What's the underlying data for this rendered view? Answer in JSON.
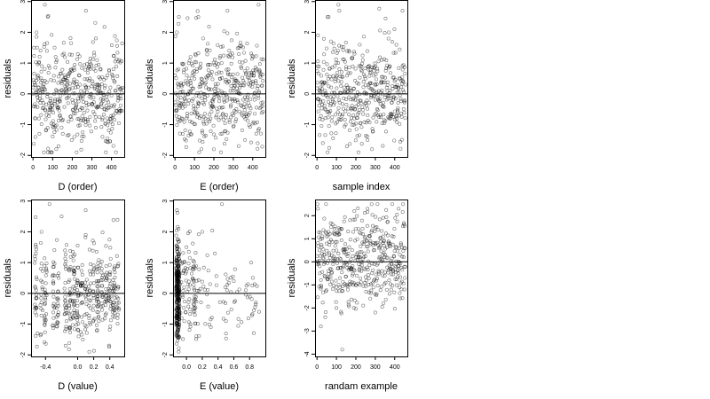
{
  "chart_data": [
    {
      "type": "scatter",
      "xlabel": "D (order)",
      "ylabel": "residuals",
      "xlim": [
        -10,
        465
      ],
      "ylim": [
        -2.05,
        3.05
      ],
      "xticks": [
        0,
        100,
        200,
        300,
        400
      ],
      "xtick_labels": [
        "0",
        "100",
        "200",
        "300",
        "400"
      ],
      "yticks": [
        -2,
        -1,
        0,
        1,
        2,
        3
      ],
      "ytick_labels": [
        "-2",
        "-1",
        "0",
        "1",
        "2",
        "3"
      ],
      "hline": 0,
      "n_points": 450,
      "points": [
        [
          5,
          1.5
        ],
        [
          12,
          -1.4
        ],
        [
          18,
          2.0
        ],
        [
          25,
          0.6
        ],
        [
          30,
          -0.8
        ],
        [
          45,
          0.9
        ],
        [
          60,
          2.9
        ],
        [
          75,
          2.5
        ],
        [
          90,
          -0.5
        ],
        [
          110,
          1.5
        ],
        [
          130,
          -1.7
        ],
        [
          150,
          0.4
        ],
        [
          180,
          -0.9
        ],
        [
          210,
          -1.4
        ],
        [
          240,
          0.3
        ],
        [
          270,
          2.7
        ],
        [
          290,
          0.5
        ],
        [
          320,
          -1.1
        ],
        [
          350,
          -0.3
        ],
        [
          380,
          0.6
        ],
        [
          410,
          0.8
        ],
        [
          440,
          1.1
        ],
        [
          455,
          0.2
        ]
      ],
      "grid": false
    },
    {
      "type": "scatter",
      "xlabel": "E (order)",
      "ylabel": "residuals",
      "xlim": [
        -10,
        465
      ],
      "ylim": [
        -2.05,
        3.05
      ],
      "xticks": [
        0,
        100,
        200,
        300,
        400
      ],
      "xtick_labels": [
        "0",
        "100",
        "200",
        "300",
        "400"
      ],
      "yticks": [
        -2,
        -1,
        0,
        1,
        2,
        3
      ],
      "ytick_labels": [
        "-2",
        "-1",
        "0",
        "1",
        "2",
        "3"
      ],
      "hline": 0,
      "n_points": 450,
      "points": [
        [
          10,
          2.0
        ],
        [
          20,
          2.5
        ],
        [
          40,
          -1.3
        ],
        [
          80,
          1.2
        ],
        [
          120,
          2.5
        ],
        [
          140,
          -1.2
        ],
        [
          170,
          0.6
        ],
        [
          200,
          -1.8
        ],
        [
          240,
          1.0
        ],
        [
          270,
          2.7
        ],
        [
          300,
          -0.7
        ],
        [
          330,
          1.5
        ],
        [
          360,
          -1.5
        ],
        [
          400,
          0.4
        ],
        [
          430,
          2.9
        ],
        [
          450,
          -0.4
        ]
      ],
      "grid": false
    },
    {
      "type": "scatter",
      "xlabel": "sample index",
      "ylabel": "residuals",
      "xlim": [
        -10,
        465
      ],
      "ylim": [
        -2.05,
        3.05
      ],
      "xticks": [
        0,
        100,
        200,
        300,
        400
      ],
      "xtick_labels": [
        "0",
        "100",
        "200",
        "300",
        "400"
      ],
      "yticks": [
        -2,
        -1,
        0,
        1,
        2,
        3
      ],
      "ytick_labels": [
        "-2",
        "-1",
        "0",
        "1",
        "2",
        "3"
      ],
      "hline": 0,
      "n_points": 450,
      "points": [
        [
          5,
          1.9
        ],
        [
          30,
          -1.6
        ],
        [
          60,
          2.5
        ],
        [
          110,
          2.9
        ],
        [
          115,
          2.7
        ],
        [
          150,
          0.8
        ],
        [
          190,
          -1.0
        ],
        [
          220,
          1.6
        ],
        [
          260,
          -1.5
        ],
        [
          300,
          0.9
        ],
        [
          340,
          -0.4
        ],
        [
          370,
          2.0
        ],
        [
          410,
          -0.7
        ],
        [
          440,
          2.7
        ],
        [
          455,
          0.3
        ]
      ],
      "grid": false
    },
    {
      "type": "scatter",
      "xlabel": "D (value)",
      "ylabel": "residuals",
      "xlim": [
        -0.58,
        0.58
      ],
      "ylim": [
        -2.05,
        3.05
      ],
      "xticks": [
        -0.4,
        0.0,
        0.2,
        0.4
      ],
      "xtick_labels": [
        "-0.4",
        "0.0",
        "0.2",
        "0.4"
      ],
      "yticks": [
        -2,
        -1,
        0,
        1,
        2,
        3
      ],
      "ytick_labels": [
        "-2",
        "-1",
        "0",
        "1",
        "2",
        "3"
      ],
      "hline": 0,
      "n_points": 450,
      "points": [
        [
          -0.52,
          1.3
        ],
        [
          -0.5,
          -1.3
        ],
        [
          -0.45,
          2.0
        ],
        [
          -0.35,
          2.9
        ],
        [
          -0.3,
          -0.8
        ],
        [
          -0.2,
          2.5
        ],
        [
          -0.15,
          -1.7
        ],
        [
          -0.1,
          0.8
        ],
        [
          0.0,
          -0.7
        ],
        [
          0.1,
          2.7
        ],
        [
          0.1,
          1.9
        ],
        [
          0.2,
          -0.4
        ],
        [
          0.3,
          0.8
        ],
        [
          0.4,
          0.1
        ],
        [
          0.5,
          0.9
        ]
      ],
      "grid": false
    },
    {
      "type": "scatter",
      "xlabel": "E (value)",
      "ylabel": "residuals",
      "xlim": [
        -0.17,
        1.0
      ],
      "ylim": [
        -2.05,
        3.05
      ],
      "xticks": [
        0.0,
        0.2,
        0.4,
        0.6,
        0.8
      ],
      "xtick_labels": [
        "0.0",
        "0.2",
        "0.4",
        "0.6",
        "0.8"
      ],
      "yticks": [
        -2,
        -1,
        0,
        1,
        2,
        3
      ],
      "ytick_labels": [
        "-2",
        "-1",
        "0",
        "1",
        "2",
        "3"
      ],
      "hline": 0,
      "n_points": 450,
      "points": [
        [
          -0.12,
          2.7
        ],
        [
          -0.12,
          -1.4
        ],
        [
          -0.1,
          2.1
        ],
        [
          -0.08,
          0.3
        ],
        [
          0.0,
          1.5
        ],
        [
          0.05,
          -1.0
        ],
        [
          0.2,
          2.0
        ],
        [
          0.3,
          0.3
        ],
        [
          0.45,
          2.9
        ],
        [
          0.5,
          -0.9
        ],
        [
          0.6,
          0.4
        ],
        [
          0.78,
          0.3
        ],
        [
          0.82,
          1.0
        ],
        [
          0.88,
          -0.3
        ],
        [
          0.92,
          -0.6
        ]
      ],
      "grid": false
    },
    {
      "type": "scatter",
      "xlabel": "randam example",
      "ylabel": "residuals",
      "xlim": [
        -10,
        465
      ],
      "ylim": [
        -4.1,
        2.7
      ],
      "xticks": [
        0,
        100,
        200,
        300,
        400
      ],
      "xtick_labels": [
        "0",
        "100",
        "200",
        "300",
        "400"
      ],
      "yticks": [
        -4,
        -3,
        -2,
        -1,
        0,
        1,
        2
      ],
      "ytick_labels": [
        "-4",
        "-3",
        "-2",
        "-1",
        "0",
        "1",
        "2"
      ],
      "hline": 0,
      "n_points": 450,
      "points": [
        [
          5,
          2.3
        ],
        [
          20,
          -2.8
        ],
        [
          60,
          1.3
        ],
        [
          100,
          -2.0
        ],
        [
          130,
          -3.8
        ],
        [
          170,
          1.8
        ],
        [
          220,
          -1.0
        ],
        [
          260,
          2.3
        ],
        [
          300,
          -2.2
        ],
        [
          340,
          1.1
        ],
        [
          380,
          -0.3
        ],
        [
          420,
          2.3
        ],
        [
          450,
          -1.2
        ]
      ],
      "grid": false
    }
  ]
}
